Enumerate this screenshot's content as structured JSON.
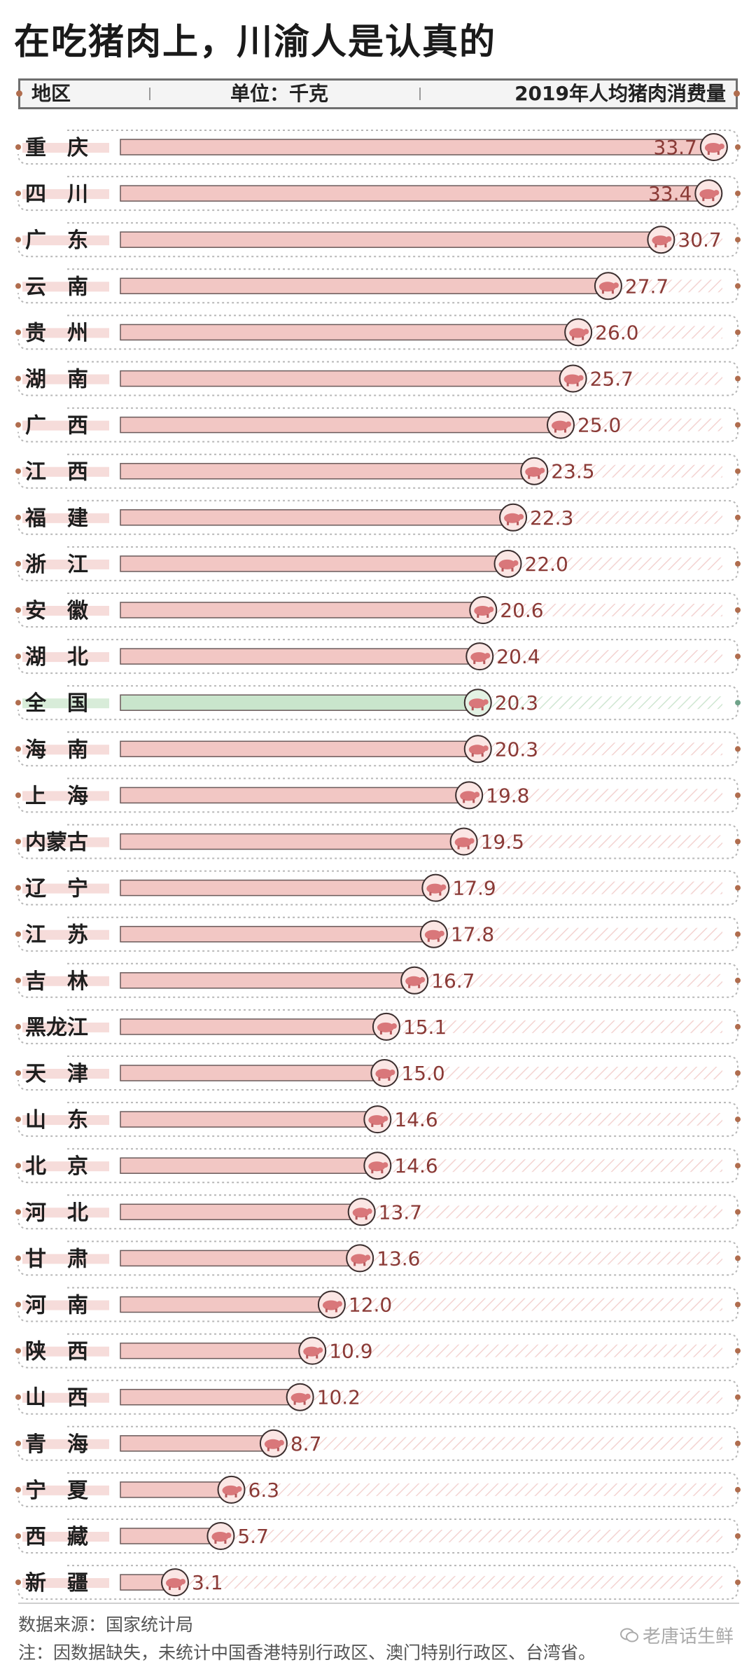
{
  "title": "在吃猪肉上，川渝人是认真的",
  "header": {
    "region_label": "地区",
    "unit_label": "单位：千克",
    "metric_label": "2019年人均猪肉消费量"
  },
  "chart_data": {
    "type": "bar",
    "orientation": "horizontal",
    "categories": [
      "重　庆",
      "四　川",
      "广　东",
      "云　南",
      "贵　州",
      "湖　南",
      "广　西",
      "江　西",
      "福　建",
      "浙　江",
      "安　徽",
      "湖　北",
      "全　国",
      "海　南",
      "上　海",
      "内蒙古",
      "辽　宁",
      "江　苏",
      "吉　林",
      "黑龙江",
      "天　津",
      "山　东",
      "北　京",
      "河　北",
      "甘　肃",
      "河　南",
      "陕　西",
      "山　西",
      "青　海",
      "宁　夏",
      "西　藏",
      "新　疆"
    ],
    "values": [
      33.7,
      33.4,
      30.7,
      27.7,
      26.0,
      25.7,
      25.0,
      23.5,
      22.3,
      22.0,
      20.6,
      20.4,
      20.3,
      20.3,
      19.8,
      19.5,
      17.9,
      17.8,
      16.7,
      15.1,
      15.0,
      14.6,
      14.6,
      13.7,
      13.6,
      12.0,
      10.9,
      10.2,
      8.7,
      6.3,
      5.7,
      3.1
    ],
    "value_labels": [
      "33.7",
      "33.4",
      "30.7",
      "27.7",
      "26.0",
      "25.7",
      "25.0",
      "23.5",
      "22.3",
      "22.0",
      "20.6",
      "20.4",
      "20.3",
      "20.3",
      "19.8",
      "19.5",
      "17.9",
      "17.8",
      "16.7",
      "15.1",
      "15.0",
      "14.6",
      "14.6",
      "13.7",
      "13.6",
      "12.0",
      "10.9",
      "10.2",
      "8.7",
      "6.3",
      "5.7",
      "3.1"
    ],
    "highlight_category": "全　国",
    "xlim": [
      0,
      34.5
    ],
    "bar_color": "#f2c7c4",
    "highlight_color": "#c9e5cc",
    "label_color": "#8a3a36",
    "icon": "pig-icon"
  },
  "footer": {
    "source": "数据来源：国家统计局",
    "note": "注：因数据缺失，未统计中国香港特别行政区、澳门特别行政区、台湾省。"
  },
  "watermark": {
    "text": "老唐话生鲜",
    "icon": "wechat-icon"
  }
}
